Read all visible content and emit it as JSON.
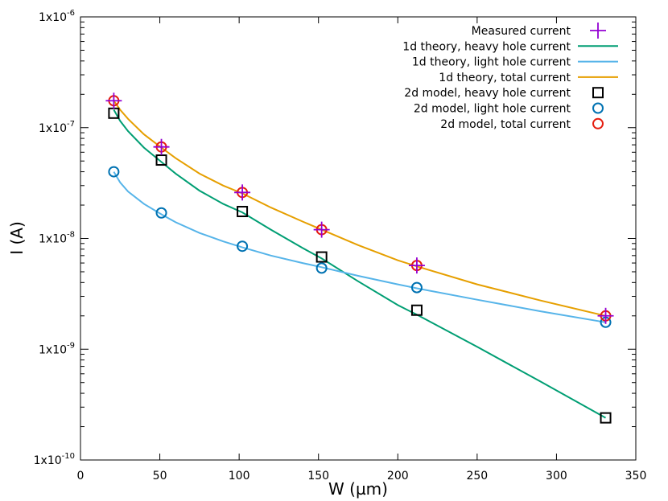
{
  "chart_data": {
    "type": "line",
    "xlabel": "W (µm)",
    "ylabel": "I (A)",
    "xlim": [
      0,
      350
    ],
    "ylim": [
      1e-10,
      1e-06
    ],
    "yscale": "log",
    "grid": false,
    "legend_position": "top-right",
    "xticks": [
      0,
      50,
      100,
      150,
      200,
      250,
      300,
      350
    ],
    "xtick_labels": [
      "0",
      "50",
      "100",
      "150",
      "200",
      "250",
      "300",
      "350"
    ],
    "yticks": [
      1e-10,
      1e-09,
      1e-08,
      1e-07,
      1e-06
    ],
    "ytick_labels": [
      {
        "base": "1x10",
        "exp": "-10"
      },
      {
        "base": "1x10",
        "exp": "-9"
      },
      {
        "base": "1x10",
        "exp": "-8"
      },
      {
        "base": "1x10",
        "exp": "-7"
      },
      {
        "base": "1x10",
        "exp": "-6"
      }
    ],
    "series": [
      {
        "name": "Measured current",
        "kind": "points",
        "marker": "plus",
        "color": "#9400d3",
        "x": [
          21,
          51,
          102,
          152,
          212,
          331
        ],
        "y": [
          1.75e-07,
          6.7e-08,
          2.6e-08,
          1.2e-08,
          5.7e-09,
          2e-09
        ]
      },
      {
        "name": "1d theory, heavy hole current",
        "kind": "line",
        "color": "#009e73",
        "x": [
          21,
          25,
          30,
          40,
          51,
          60,
          75,
          90,
          102,
          120,
          140,
          152,
          175,
          200,
          212,
          250,
          290,
          331
        ],
        "y": [
          1.45e-07,
          1.15e-07,
          9.3e-08,
          6.6e-08,
          4.9e-08,
          3.85e-08,
          2.7e-08,
          2.05e-08,
          1.72e-08,
          1.2e-08,
          8.2e-09,
          6.6e-09,
          4.1e-09,
          2.5e-09,
          2.05e-09,
          1.05e-09,
          5.1e-10,
          2.4e-10
        ]
      },
      {
        "name": "1d theory, light hole current",
        "kind": "line",
        "color": "#56b4e9",
        "x": [
          21,
          25,
          30,
          40,
          51,
          60,
          75,
          90,
          102,
          120,
          140,
          152,
          175,
          200,
          212,
          250,
          290,
          331
        ],
        "y": [
          4e-08,
          3.2e-08,
          2.65e-08,
          2.05e-08,
          1.65e-08,
          1.4e-08,
          1.12e-08,
          9.4e-09,
          8.3e-09,
          7e-09,
          6e-09,
          5.5e-09,
          4.6e-09,
          3.85e-09,
          3.55e-09,
          2.8e-09,
          2.2e-09,
          1.75e-09
        ]
      },
      {
        "name": "1d theory, total current",
        "kind": "line",
        "color": "#e69f00",
        "x": [
          21,
          25,
          30,
          40,
          51,
          60,
          75,
          90,
          102,
          120,
          140,
          152,
          175,
          200,
          212,
          250,
          290,
          331
        ],
        "y": [
          1.75e-07,
          1.45e-07,
          1.2e-07,
          8.7e-08,
          6.6e-08,
          5.3e-08,
          3.85e-08,
          3e-08,
          2.55e-08,
          1.9e-08,
          1.42e-08,
          1.2e-08,
          8.7e-09,
          6.35e-09,
          5.6e-09,
          3.85e-09,
          2.75e-09,
          2e-09
        ]
      },
      {
        "name": "2d model, heavy hole current",
        "kind": "points",
        "marker": "square",
        "color": "#000000",
        "x": [
          21,
          51,
          102,
          152,
          212,
          331
        ],
        "y": [
          1.35e-07,
          5.1e-08,
          1.75e-08,
          6.8e-09,
          2.25e-09,
          2.4e-10
        ]
      },
      {
        "name": "2d model, light hole current",
        "kind": "points",
        "marker": "circle",
        "color": "#0072b2",
        "x": [
          21,
          51,
          102,
          152,
          212,
          331
        ],
        "y": [
          4e-08,
          1.7e-08,
          8.5e-09,
          5.4e-09,
          3.6e-09,
          1.75e-09
        ]
      },
      {
        "name": "2d model, total current",
        "kind": "points",
        "marker": "circle",
        "color": "#e51e10",
        "x": [
          21,
          51,
          102,
          152,
          212,
          331
        ],
        "y": [
          1.75e-07,
          6.7e-08,
          2.6e-08,
          1.2e-08,
          5.7e-09,
          2e-09
        ]
      }
    ]
  }
}
